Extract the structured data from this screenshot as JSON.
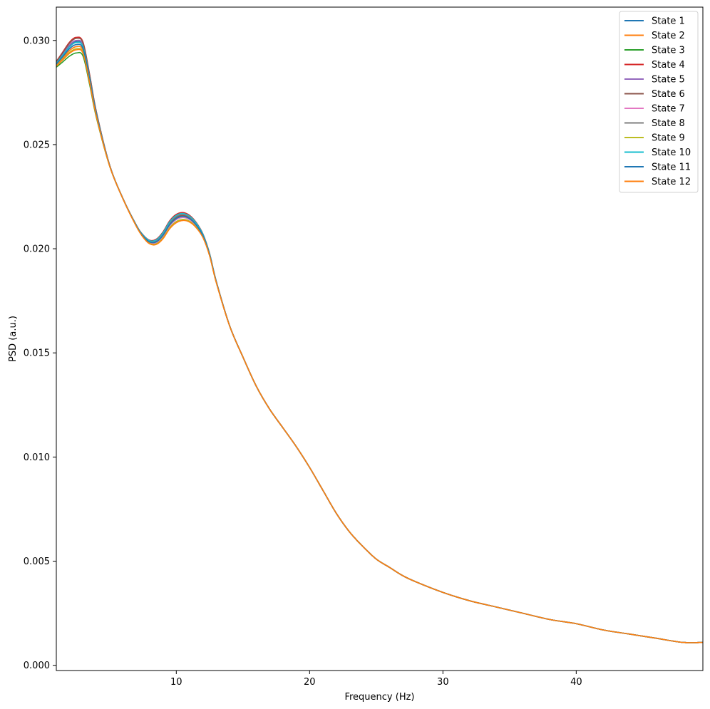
{
  "chart_data": {
    "type": "line",
    "title": "",
    "xlabel": "Frequency (Hz)",
    "ylabel": "PSD (a.u.)",
    "xlim": [
      1.0,
      49.5
    ],
    "ylim": [
      -0.00025,
      0.0316
    ],
    "x_ticks": [
      10,
      20,
      30,
      40
    ],
    "x_tick_labels": [
      "10",
      "20",
      "30",
      "40"
    ],
    "y_ticks": [
      0.0,
      0.005,
      0.01,
      0.015,
      0.02,
      0.025,
      0.03
    ],
    "y_tick_labels": [
      "0.000",
      "0.005",
      "0.010",
      "0.015",
      "0.020",
      "0.025",
      "0.030"
    ],
    "grid": false,
    "legend_position": "top-right",
    "x": [
      1,
      1.5,
      2,
      2.5,
      3,
      3.5,
      4,
      5,
      6,
      7,
      7.5,
      8,
      8.5,
      9,
      9.5,
      10,
      10.5,
      11,
      11.5,
      12,
      12.5,
      13,
      14,
      15,
      16,
      17,
      18,
      19,
      20,
      21,
      22,
      23,
      24,
      25,
      26,
      27,
      28,
      30,
      32,
      34,
      36,
      38,
      40,
      42,
      44,
      46,
      48,
      49.5
    ],
    "base_values": [
      0.0289,
      0.0293,
      0.0297,
      0.0299,
      0.0297,
      0.0282,
      0.0265,
      0.024,
      0.0224,
      0.0211,
      0.0206,
      0.0203,
      0.0203,
      0.0206,
      0.0211,
      0.0214,
      0.0215,
      0.0214,
      0.0211,
      0.0206,
      0.0197,
      0.0184,
      0.0163,
      0.0148,
      0.0134,
      0.0123,
      0.0114,
      0.0105,
      0.0095,
      0.0084,
      0.0073,
      0.0064,
      0.0057,
      0.0051,
      0.0047,
      0.0043,
      0.004,
      0.0035,
      0.0031,
      0.0028,
      0.0025,
      0.0022,
      0.002,
      0.0017,
      0.0015,
      0.0013,
      0.0011,
      0.0011
    ],
    "series": [
      {
        "name": "State 1",
        "color": "#1f77b4",
        "peak_offset": 5e-05,
        "alpha_offset": 0.0001
      },
      {
        "name": "State 2",
        "color": "#ff7f0e",
        "peak_offset": -0.0002,
        "alpha_offset": 5e-05
      },
      {
        "name": "State 3",
        "color": "#2ca02c",
        "peak_offset": -0.0005,
        "alpha_offset": -0.0001
      },
      {
        "name": "State 4",
        "color": "#d62728",
        "peak_offset": 0.00025,
        "alpha_offset": 0.00025
      },
      {
        "name": "State 5",
        "color": "#9467bd",
        "peak_offset": 0.0001,
        "alpha_offset": 0.0
      },
      {
        "name": "State 6",
        "color": "#8c564b",
        "peak_offset": 0.0002,
        "alpha_offset": 0.0001
      },
      {
        "name": "State 7",
        "color": "#e377c2",
        "peak_offset": -0.0001,
        "alpha_offset": 0.0
      },
      {
        "name": "State 8",
        "color": "#7f7f7f",
        "peak_offset": 0.0,
        "alpha_offset": 0.00015
      },
      {
        "name": "State 9",
        "color": "#bcbd22",
        "peak_offset": -0.0003,
        "alpha_offset": -0.0001
      },
      {
        "name": "State 10",
        "color": "#17becf",
        "peak_offset": 0.0,
        "alpha_offset": 0.0002
      },
      {
        "name": "State 11",
        "color": "#1f77b4",
        "peak_offset": -0.0001,
        "alpha_offset": 5e-05
      },
      {
        "name": "State 12",
        "color": "#ff7f0e",
        "peak_offset": -0.00035,
        "alpha_offset": -0.00015
      }
    ]
  }
}
